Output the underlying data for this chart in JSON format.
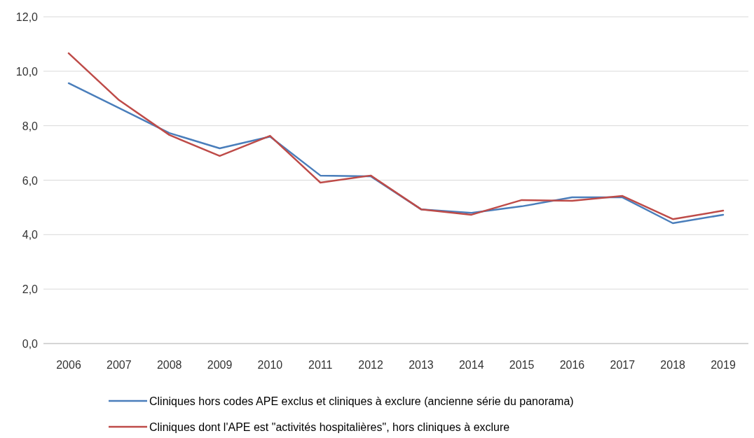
{
  "chart_data": {
    "type": "line",
    "categories": [
      "2006",
      "2007",
      "2008",
      "2009",
      "2010",
      "2011",
      "2012",
      "2013",
      "2014",
      "2015",
      "2016",
      "2017",
      "2018",
      "2019"
    ],
    "series": [
      {
        "name": "Cliniques hors codes APE exclus et cliniques à exclure (ancienne série du panorama)",
        "color": "#4a7ebb",
        "values": [
          9.56,
          8.65,
          7.73,
          7.17,
          7.6,
          6.17,
          6.14,
          4.93,
          4.8,
          5.04,
          5.37,
          5.37,
          4.42,
          4.73
        ]
      },
      {
        "name": "Cliniques dont l'APE est \"activités hospitalières\", hors cliniques à exclure",
        "color": "#be4b48",
        "values": [
          10.66,
          8.94,
          7.66,
          6.89,
          7.63,
          5.91,
          6.17,
          4.93,
          4.73,
          5.27,
          5.24,
          5.42,
          4.57,
          4.88
        ]
      }
    ],
    "ylim": [
      0,
      12
    ],
    "yticks": [
      {
        "value": 0,
        "label": "0,0"
      },
      {
        "value": 2,
        "label": "2,0"
      },
      {
        "value": 4,
        "label": "4,0"
      },
      {
        "value": 6,
        "label": "6,0"
      },
      {
        "value": 8,
        "label": "8,0"
      },
      {
        "value": 10,
        "label": "10,0"
      },
      {
        "value": 12,
        "label": "12,0"
      }
    ],
    "grid": "y",
    "legend": "bottom",
    "marker": "none",
    "line_style": "solid"
  }
}
